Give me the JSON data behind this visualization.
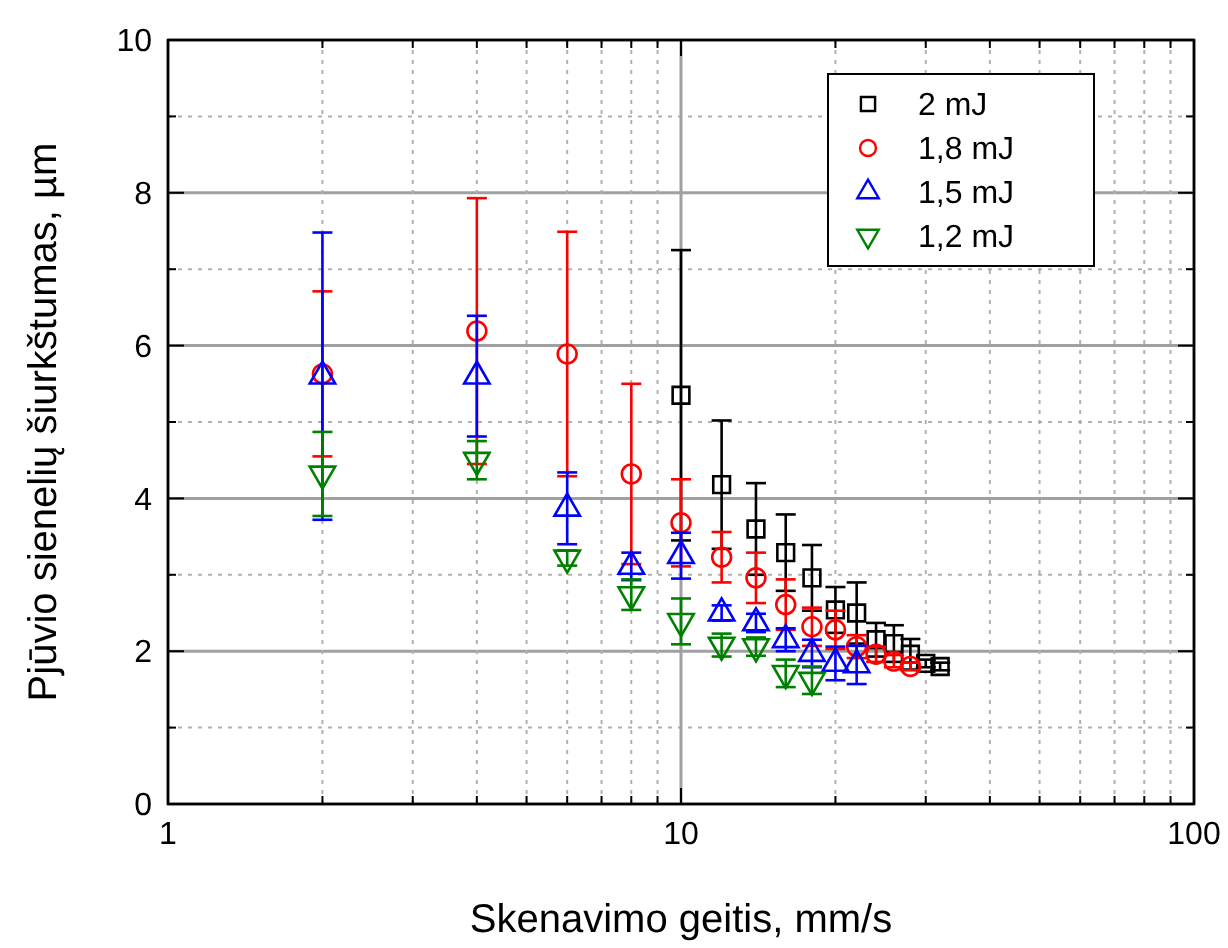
{
  "chart_data": {
    "type": "scatter",
    "xlabel": "Skenavimo geitis, mm/s",
    "ylabel": "Pjūvio sienelių šiurkštumas, µm",
    "log": "x",
    "xlim": [
      1,
      100
    ],
    "xticks": [
      1,
      {
        "value": 2,
        "label": null
      },
      {
        "value": 3,
        "label": null
      },
      {
        "value": 4,
        "label": null
      },
      {
        "value": 5,
        "label": null
      },
      {
        "value": 6,
        "label": null
      },
      {
        "value": 7,
        "label": null
      },
      {
        "value": 8,
        "label": null
      },
      {
        "value": 9,
        "label": null
      },
      10,
      {
        "value": 20,
        "label": null
      },
      {
        "value": 30,
        "label": null
      },
      {
        "value": 40,
        "label": null
      },
      {
        "value": 50,
        "label": null
      },
      {
        "value": 60,
        "label": null
      },
      {
        "value": 70,
        "label": null
      },
      {
        "value": 80,
        "label": null
      },
      {
        "value": 90,
        "label": null
      },
      100
    ],
    "ylim": [
      0,
      10
    ],
    "yticks": [
      0,
      {
        "value": 1,
        "label": null
      },
      2,
      {
        "value": 3,
        "label": null
      },
      4,
      {
        "value": 5,
        "label": null
      },
      6,
      {
        "value": 7,
        "label": null
      },
      8,
      {
        "value": 9,
        "label": null
      },
      10
    ],
    "grid": true,
    "legend": "top right",
    "series": [
      {
        "name": "2 mJ",
        "color": "#000000",
        "marker": "square",
        "x": [
          10,
          12,
          14,
          16,
          18,
          20,
          22,
          24,
          26,
          28,
          30,
          32
        ],
        "values": [
          5.35,
          4.18,
          3.6,
          3.29,
          2.96,
          2.54,
          2.5,
          2.15,
          2.1,
          1.96,
          1.84,
          1.8
        ],
        "errors": [
          1.9,
          0.84,
          0.6,
          0.5,
          0.43,
          0.3,
          0.4,
          0.22,
          0.24,
          0.2,
          0.05,
          0.05
        ]
      },
      {
        "name": "1,8 mJ",
        "color": "#ff0000",
        "marker": "circle",
        "x": [
          2,
          4,
          6,
          8,
          10,
          12,
          14,
          16,
          18,
          20,
          22,
          24,
          26,
          28
        ],
        "values": [
          5.63,
          6.19,
          5.89,
          4.32,
          3.68,
          3.23,
          2.96,
          2.61,
          2.32,
          2.28,
          2.06,
          1.96,
          1.87,
          1.8
        ],
        "errors": [
          1.08,
          1.74,
          1.6,
          1.18,
          0.57,
          0.33,
          0.33,
          0.33,
          0.25,
          0.25,
          0.15,
          0.1,
          0.08,
          0.05
        ]
      },
      {
        "name": "1,5 mJ",
        "color": "#0000ff",
        "marker": "triangle",
        "x": [
          2,
          4,
          6,
          8,
          10,
          12,
          14,
          16,
          18,
          20,
          22
        ],
        "values": [
          5.6,
          5.6,
          3.87,
          3.11,
          3.25,
          2.5,
          2.37,
          2.15,
          1.97,
          1.84,
          1.82
        ],
        "errors": [
          1.88,
          0.79,
          0.47,
          0.18,
          0.3,
          0.1,
          0.12,
          0.15,
          0.18,
          0.22,
          0.25
        ]
      },
      {
        "name": "1,2 mJ",
        "color": "#008000",
        "marker": "triangle-down",
        "x": [
          2,
          4,
          6,
          8,
          10,
          12,
          14,
          16,
          18
        ],
        "values": [
          4.32,
          4.5,
          3.22,
          2.74,
          2.39,
          2.08,
          2.06,
          1.71,
          1.62
        ],
        "errors": [
          0.55,
          0.25,
          0.1,
          0.2,
          0.3,
          0.15,
          0.12,
          0.18,
          0.18
        ]
      }
    ]
  }
}
